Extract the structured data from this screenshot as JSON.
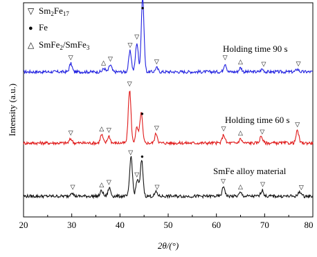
{
  "chart_data": {
    "type": "line",
    "title": "",
    "xlabel": "2θ/(°)",
    "ylabel": "Intensity (a.u.)",
    "xlim": [
      20,
      80
    ],
    "x_ticks": [
      "20",
      "30",
      "40",
      "50",
      "60",
      "70",
      "80"
    ],
    "grid": false,
    "legend_position": "top-left",
    "legend": [
      {
        "symbol": "▽",
        "label": "Sm2Fe17"
      },
      {
        "symbol": "●",
        "label": "Fe"
      },
      {
        "symbol": "△",
        "label": "SmFe2/SmFe3"
      }
    ],
    "series": [
      {
        "name": "Holding time 90 s",
        "color": "#1f1fe0",
        "baseline": 104,
        "peaks": [
          [
            29.8,
            12
          ],
          [
            36.7,
            5
          ],
          [
            38.0,
            10
          ],
          [
            42.1,
            30
          ],
          [
            43.5,
            42
          ],
          [
            44.7,
            108
          ],
          [
            47.6,
            6
          ],
          [
            61.8,
            12
          ],
          [
            65.0,
            6
          ],
          [
            69.5,
            4
          ],
          [
            76.8,
            4
          ]
        ],
        "markers": [
          {
            "symbol": "▽",
            "x": 29.8
          },
          {
            "symbol": "△",
            "x": 36.6
          },
          {
            "symbol": "▽",
            "x": 38.0
          },
          {
            "symbol": "▽",
            "x": 42.1
          },
          {
            "symbol": "▽",
            "x": 43.5
          },
          {
            "symbol": "●",
            "x": 44.7
          },
          {
            "symbol": "▽",
            "x": 47.6
          },
          {
            "symbol": "▽",
            "x": 61.8
          },
          {
            "symbol": "△",
            "x": 65.0
          },
          {
            "symbol": "▽",
            "x": 69.8
          },
          {
            "symbol": "▽",
            "x": 77.0
          }
        ]
      },
      {
        "name": "Holding time 60 s",
        "color": "#e01818",
        "baseline": 207,
        "peaks": [
          [
            29.8,
            6
          ],
          [
            36.2,
            12
          ],
          [
            37.7,
            10
          ],
          [
            42.0,
            77
          ],
          [
            43.5,
            22
          ],
          [
            44.4,
            44
          ],
          [
            47.5,
            14
          ],
          [
            61.5,
            12
          ],
          [
            65.0,
            6
          ],
          [
            69.3,
            10
          ],
          [
            76.8,
            18
          ]
        ],
        "markers": [
          {
            "symbol": "▽",
            "x": 29.8
          },
          {
            "symbol": "△",
            "x": 36.2
          },
          {
            "symbol": "▽",
            "x": 37.7
          },
          {
            "symbol": "▽",
            "x": 42.0
          },
          {
            "symbol": "●",
            "x": 44.6
          },
          {
            "symbol": "▽",
            "x": 47.6
          },
          {
            "symbol": "▽",
            "x": 61.5
          },
          {
            "symbol": "△",
            "x": 65.0
          },
          {
            "symbol": "▽",
            "x": 69.5
          },
          {
            "symbol": "▽",
            "x": 76.8
          }
        ]
      },
      {
        "name": "SmFe alloy material",
        "color": "#111111",
        "baseline": 284,
        "peaks": [
          [
            30.0,
            6
          ],
          [
            36.2,
            8
          ],
          [
            37.8,
            12
          ],
          [
            42.3,
            58
          ],
          [
            43.6,
            24
          ],
          [
            44.5,
            52
          ],
          [
            47.5,
            6
          ],
          [
            61.5,
            14
          ],
          [
            65.0,
            5
          ],
          [
            69.5,
            9
          ],
          [
            77.3,
            7
          ]
        ],
        "markers": [
          {
            "symbol": "▽",
            "x": 30.2
          },
          {
            "symbol": "△",
            "x": 36.2
          },
          {
            "symbol": "▽",
            "x": 37.7
          },
          {
            "symbol": "▽",
            "x": 42.2
          },
          {
            "symbol": "▽",
            "x": 43.5
          },
          {
            "symbol": "●",
            "x": 44.6
          },
          {
            "symbol": "▽",
            "x": 47.7
          },
          {
            "symbol": "▽",
            "x": 61.4
          },
          {
            "symbol": "△",
            "x": 65.0
          },
          {
            "symbol": "▽",
            "x": 69.6
          },
          {
            "symbol": "▽",
            "x": 77.6
          }
        ]
      }
    ]
  }
}
